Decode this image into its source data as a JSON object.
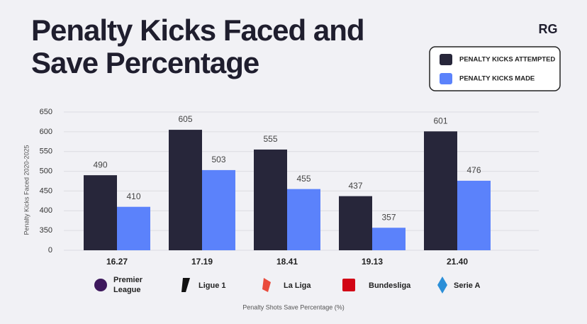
{
  "chart_data": {
    "type": "bar",
    "title": "Penalty Kicks Faced and Save Percentage",
    "logo": "RG",
    "categories": [
      "16.27",
      "17.19",
      "18.41",
      "19.13",
      "21.40"
    ],
    "leagues": [
      "Premier League",
      "Ligue 1",
      "La Liga",
      "Bundesliga",
      "Serie A"
    ],
    "series": [
      {
        "name": "PENALTY KICKS ATTEMPTED",
        "color": "#27263a",
        "values": [
          490,
          605,
          555,
          437,
          601
        ]
      },
      {
        "name": "PENALTY KICKS MADE",
        "color": "#5b82fb",
        "values": [
          410,
          503,
          455,
          357,
          476
        ]
      }
    ],
    "ylim": [
      300,
      650
    ],
    "yticks": [
      {
        "value": 300,
        "label": "0"
      },
      350,
      400,
      450,
      500,
      550,
      600,
      650
    ],
    "ylabel": "Penalty Kicks Faced 2020-2025",
    "xlabel": "Penalty Shots Save Percentage (%)",
    "grid": true
  }
}
